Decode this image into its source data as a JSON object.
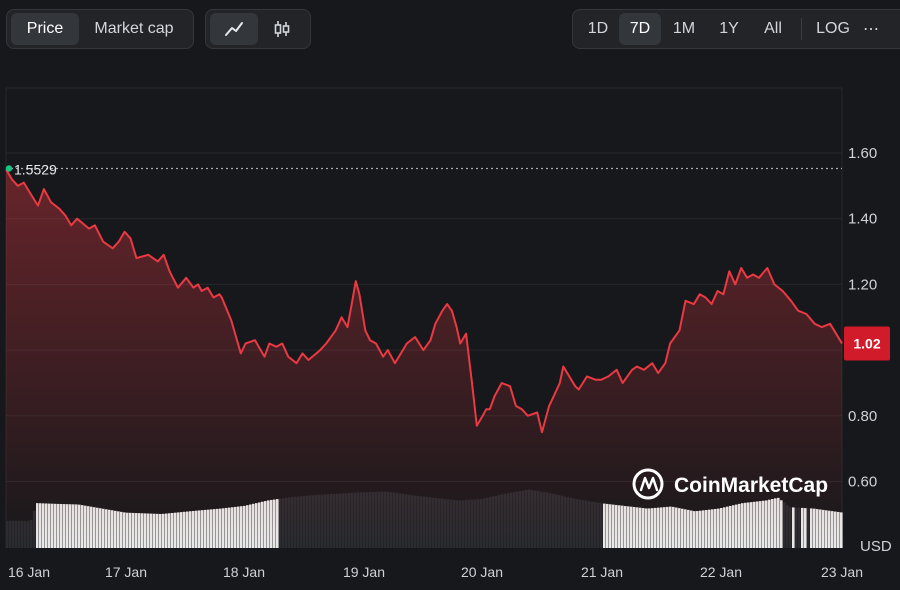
{
  "toolbar": {
    "metric_tabs": [
      {
        "label": "Price",
        "active": true
      },
      {
        "label": "Market cap",
        "active": false
      }
    ],
    "chart_types": [
      {
        "icon": "line-chart-icon",
        "active": true
      },
      {
        "icon": "candlestick-icon",
        "active": false
      }
    ],
    "ranges": [
      {
        "label": "1D",
        "active": false
      },
      {
        "label": "7D",
        "active": true
      },
      {
        "label": "1M",
        "active": false
      },
      {
        "label": "1Y",
        "active": false
      },
      {
        "label": "All",
        "active": false
      }
    ],
    "log_label": "LOG",
    "more_label": "⋯"
  },
  "colors": {
    "background": "#17181b",
    "price_line": "#ea3943",
    "price_badge": "#d11a2a",
    "volume": "#e9e9e9",
    "grid": "#26282c",
    "axis_text": "#cfd2d7"
  },
  "watermark": "CoinMarketCap",
  "chart_data": {
    "type": "line",
    "currency": "USD",
    "start_price_label": "1.5529",
    "current_price_label": "1.02",
    "ylim": [
      0.5,
      1.75
    ],
    "y_ticks": [
      "1.60",
      "1.40",
      "1.20",
      "0.80",
      "0.60"
    ],
    "x_ticks": [
      "16 Jan",
      "17 Jan",
      "18 Jan",
      "19 Jan",
      "20 Jan",
      "21 Jan",
      "22 Jan",
      "23 Jan"
    ],
    "x_range_days": [
      0,
      7.05
    ],
    "price_series": {
      "x_days": [
        0.0,
        0.05,
        0.1,
        0.15,
        0.2,
        0.27,
        0.32,
        0.38,
        0.45,
        0.5,
        0.55,
        0.6,
        0.7,
        0.75,
        0.82,
        0.9,
        0.95,
        1.0,
        1.05,
        1.1,
        1.2,
        1.28,
        1.33,
        1.38,
        1.45,
        1.52,
        1.58,
        1.62,
        1.65,
        1.7,
        1.75,
        1.8,
        1.82,
        1.9,
        1.98,
        2.02,
        2.1,
        2.18,
        2.22,
        2.28,
        2.33,
        2.38,
        2.45,
        2.5,
        2.55,
        2.65,
        2.7,
        2.78,
        2.83,
        2.88,
        2.92,
        2.95,
        2.98,
        3.03,
        3.07,
        3.12,
        3.18,
        3.22,
        3.28,
        3.33,
        3.38,
        3.45,
        3.52,
        3.58,
        3.62,
        3.68,
        3.72,
        3.76,
        3.8,
        3.83,
        3.88,
        3.93,
        3.97,
        4.02,
        4.05,
        4.08,
        4.12,
        4.18,
        4.25,
        4.3,
        4.35,
        4.4,
        4.48,
        4.52,
        4.58,
        4.62,
        4.67,
        4.7,
        4.75,
        4.8,
        4.83,
        4.9,
        4.97,
        5.02,
        5.08,
        5.15,
        5.2,
        5.28,
        5.32,
        5.38,
        5.45,
        5.5,
        5.56,
        5.6,
        5.68,
        5.73,
        5.8,
        5.85,
        5.9,
        5.95,
        6.0,
        6.05,
        6.1,
        6.15,
        6.2,
        6.25,
        6.3,
        6.35,
        6.42,
        6.48,
        6.55,
        6.62,
        6.68,
        6.75,
        6.82,
        6.88,
        6.95,
        7.0,
        7.05
      ],
      "y": [
        1.55,
        1.52,
        1.5,
        1.51,
        1.48,
        1.44,
        1.49,
        1.45,
        1.43,
        1.41,
        1.38,
        1.4,
        1.37,
        1.38,
        1.33,
        1.31,
        1.33,
        1.36,
        1.34,
        1.28,
        1.29,
        1.27,
        1.29,
        1.24,
        1.19,
        1.22,
        1.19,
        1.2,
        1.18,
        1.19,
        1.16,
        1.17,
        1.16,
        1.09,
        0.99,
        1.02,
        1.03,
        0.98,
        1.02,
        1.01,
        1.02,
        0.98,
        0.96,
        0.99,
        0.97,
        1.0,
        1.02,
        1.06,
        1.1,
        1.07,
        1.15,
        1.21,
        1.17,
        1.06,
        1.03,
        1.02,
        0.98,
        1.0,
        0.96,
        0.99,
        1.02,
        1.04,
        1.0,
        1.03,
        1.08,
        1.12,
        1.14,
        1.12,
        1.07,
        1.02,
        1.05,
        0.9,
        0.77,
        0.8,
        0.82,
        0.82,
        0.86,
        0.9,
        0.89,
        0.83,
        0.82,
        0.8,
        0.81,
        0.75,
        0.83,
        0.86,
        0.9,
        0.95,
        0.92,
        0.89,
        0.88,
        0.92,
        0.91,
        0.91,
        0.92,
        0.94,
        0.9,
        0.94,
        0.95,
        0.94,
        0.96,
        0.93,
        0.96,
        1.02,
        1.06,
        1.15,
        1.14,
        1.17,
        1.16,
        1.14,
        1.18,
        1.17,
        1.24,
        1.2,
        1.25,
        1.22,
        1.23,
        1.22,
        1.25,
        1.2,
        1.18,
        1.15,
        1.12,
        1.11,
        1.08,
        1.07,
        1.08,
        1.05,
        1.02
      ]
    },
    "volume_series": {
      "x_days": [
        0.0,
        0.2,
        0.25,
        0.4,
        0.6,
        0.8,
        1.0,
        1.3,
        1.6,
        1.8,
        2.0,
        2.2,
        2.4,
        2.6,
        2.8,
        3.0,
        3.2,
        3.4,
        3.6,
        3.8,
        4.0,
        4.2,
        4.4,
        4.6,
        4.8,
        5.0,
        5.2,
        5.4,
        5.6,
        5.8,
        6.0,
        6.2,
        6.4,
        6.5,
        6.6,
        6.8,
        7.05
      ],
      "y": [
        0.4,
        0.4,
        0.66,
        0.65,
        0.64,
        0.58,
        0.52,
        0.5,
        0.55,
        0.58,
        0.62,
        0.7,
        0.75,
        0.78,
        0.8,
        0.82,
        0.83,
        0.78,
        0.74,
        0.7,
        0.72,
        0.8,
        0.86,
        0.8,
        0.72,
        0.66,
        0.62,
        0.58,
        0.61,
        0.54,
        0.58,
        0.66,
        0.7,
        0.74,
        0.6,
        0.58,
        0.52
      ],
      "highlighted_ranges": [
        [
          0.25,
          2.28
        ],
        [
          5.02,
          6.55
        ],
        [
          6.62,
          6.65
        ],
        [
          6.68,
          6.75
        ],
        [
          6.78,
          7.05
        ]
      ]
    }
  }
}
